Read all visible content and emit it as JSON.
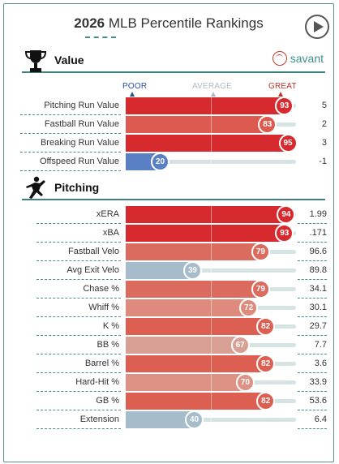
{
  "header": {
    "year": "2026",
    "title_rest": " MLB Percentile Rankings"
  },
  "value_section": {
    "title": "Value",
    "brand": "savant",
    "scale": {
      "poor": "POOR",
      "average": "AVERAGE",
      "great": "GREAT"
    },
    "rows": [
      {
        "label": "Pitching Run Value",
        "percentile": 93,
        "value": "5",
        "color": "#d72a2e"
      },
      {
        "label": "Fastball Run Value",
        "percentile": 83,
        "value": "2",
        "color": "#dc5a4f"
      },
      {
        "label": "Breaking Run Value",
        "percentile": 95,
        "value": "3",
        "color": "#d72a2e"
      },
      {
        "label": "Offspeed Run Value",
        "percentile": 20,
        "value": "-1",
        "color": "#5a7fc4"
      }
    ]
  },
  "pitching_section": {
    "title": "Pitching",
    "rows": [
      {
        "label": "xERA",
        "percentile": 94,
        "value": "1.99",
        "color": "#d72a2e"
      },
      {
        "label": "xBA",
        "percentile": 93,
        "value": ".171",
        "color": "#d72a2e"
      },
      {
        "label": "Fastball Velo",
        "percentile": 79,
        "value": "96.6",
        "color": "#dc6b5f"
      },
      {
        "label": "Avg Exit Velo",
        "percentile": 39,
        "value": "89.8",
        "color": "#a6bcca"
      },
      {
        "label": "Chase %",
        "percentile": 79,
        "value": "34.1",
        "color": "#dc6b5f"
      },
      {
        "label": "Whiff %",
        "percentile": 72,
        "value": "30.1",
        "color": "#de8a7c"
      },
      {
        "label": "K %",
        "percentile": 82,
        "value": "29.7",
        "color": "#dc5f52"
      },
      {
        "label": "BB %",
        "percentile": 67,
        "value": "7.7",
        "color": "#d8a094"
      },
      {
        "label": "Barrel %",
        "percentile": 82,
        "value": "3.6",
        "color": "#dc5f52"
      },
      {
        "label": "Hard-Hit %",
        "percentile": 70,
        "value": "33.9",
        "color": "#dc9284"
      },
      {
        "label": "GB %",
        "percentile": 82,
        "value": "53.6",
        "color": "#dc5f52"
      },
      {
        "label": "Extension",
        "percentile": 40,
        "value": "6.4",
        "color": "#a6bcca"
      }
    ]
  }
}
